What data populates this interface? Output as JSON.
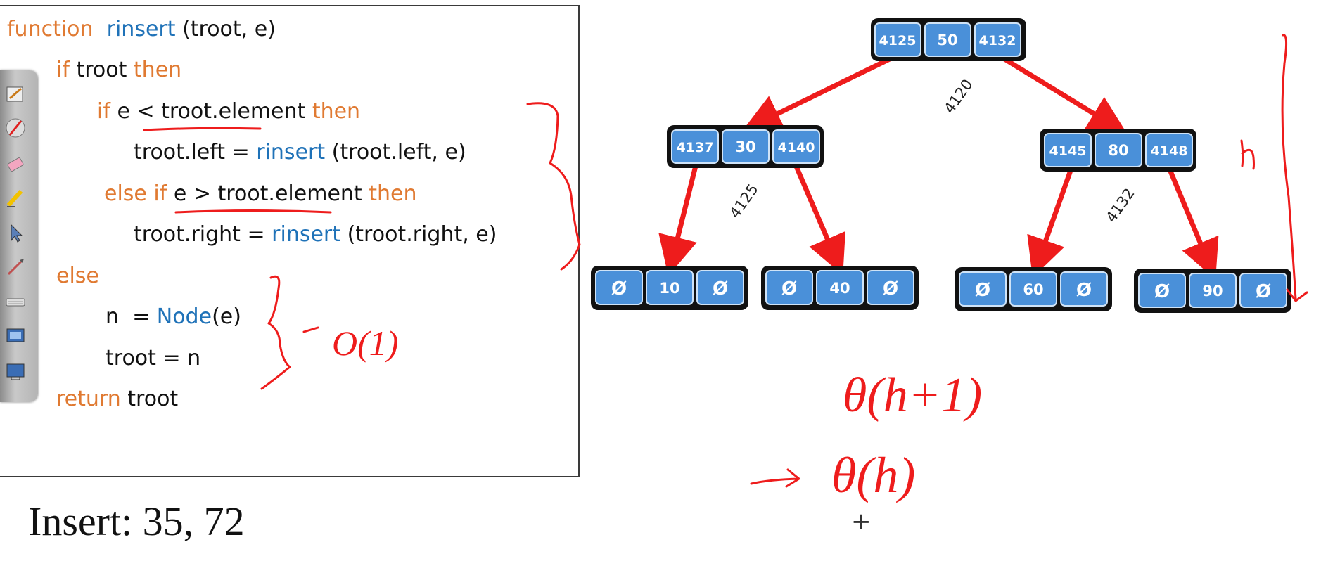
{
  "code": {
    "line1": {
      "kw": "function",
      "fn": "rinsert",
      "rest": "(troot, e)"
    },
    "line2": {
      "kw1": "if",
      "text": "troot",
      "kw2": "then"
    },
    "line3": {
      "kw1": "if",
      "text": "e < troot.element",
      "kw2": "then"
    },
    "line4": {
      "pre": "troot.left = ",
      "fn": "rinsert",
      "post": "(troot.left, e)"
    },
    "line5": {
      "kw1": "else if",
      "text": "e > troot.element",
      "kw2": "then"
    },
    "line6": {
      "pre": "troot.right = ",
      "fn": "rinsert",
      "post": "(troot.right, e)"
    },
    "line7": {
      "kw": "else"
    },
    "line8": {
      "pre": "n  = ",
      "fn": "Node",
      "post": "(e)"
    },
    "line9": {
      "text": "troot = n"
    },
    "line10": {
      "kw": "return",
      "text": "troot"
    }
  },
  "insert_label": "Insert: 35, 72",
  "tree": {
    "root": {
      "left": "4125",
      "value": "50",
      "right": "4132",
      "address": "4120"
    },
    "level1": [
      {
        "left": "4137",
        "value": "30",
        "right": "4140",
        "address": "4125"
      },
      {
        "left": "4145",
        "value": "80",
        "right": "4148",
        "address": "4132"
      }
    ],
    "leaves": [
      {
        "left": "Ø",
        "value": "10",
        "right": "Ø"
      },
      {
        "left": "Ø",
        "value": "40",
        "right": "Ø"
      },
      {
        "left": "Ø",
        "value": "60",
        "right": "Ø"
      },
      {
        "left": "Ø",
        "value": "90",
        "right": "Ø"
      }
    ]
  },
  "annotations": {
    "height": "h",
    "o1": "O(1)",
    "theta_h_plus_1": "θ(h+1)",
    "theta_h": "θ(h)"
  },
  "colors": {
    "node_fill": "#4a90d9",
    "node_border": "#111111",
    "arrow": "#ee1c1c",
    "keyword": "#e07a32",
    "function": "#1f72b8"
  }
}
